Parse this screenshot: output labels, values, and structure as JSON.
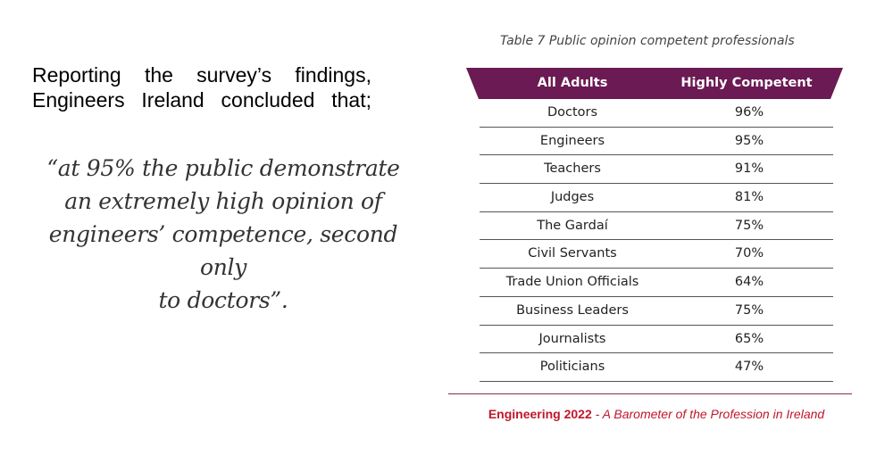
{
  "left": {
    "line1": "Reporting the survey’s findings,",
    "line2": "Engineers Ireland concluded that;"
  },
  "quote": {
    "line1": "“at 95% the public demonstrate",
    "line2": "an extremely high opinion of",
    "line3": "engineers’ competence, second only",
    "line4": "to doctors”."
  },
  "table": {
    "caption": "Table 7 Public opinion competent professionals",
    "header": {
      "col1": "All Adults",
      "col2": "Highly Competent"
    },
    "header_color": "#6b1a53",
    "rows": [
      {
        "name": "Doctors",
        "value": "96%"
      },
      {
        "name": "Engineers",
        "value": "95%"
      },
      {
        "name": "Teachers",
        "value": "91%"
      },
      {
        "name": "Judges",
        "value": "81%"
      },
      {
        "name": "The Gardaí",
        "value": "75%"
      },
      {
        "name": "Civil Servants",
        "value": "70%"
      },
      {
        "name": "Trade Union Officials",
        "value": "64%"
      },
      {
        "name": "Business Leaders",
        "value": "75%"
      },
      {
        "name": "Journalists",
        "value": "65%"
      },
      {
        "name": "Politicians",
        "value": "47%"
      }
    ]
  },
  "footer": {
    "brand": "Engineering 2022",
    "subtitle": " - A Barometer of the Profession in Ireland",
    "color": "#c0172a"
  }
}
